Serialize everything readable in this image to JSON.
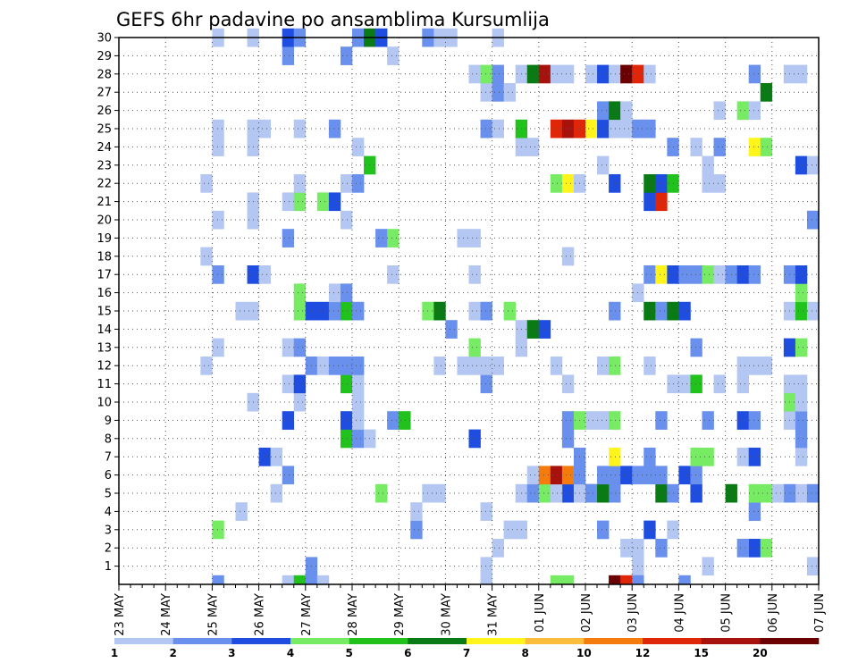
{
  "chart_data": {
    "type": "heatmap",
    "title": "GEFS 6hr padavine po ansamblima Kursumlija",
    "xlabel": "",
    "ylabel": "",
    "x_tick_labels": [
      "23 MAY",
      "24 MAY",
      "25 MAY",
      "26 MAY",
      "27 MAY",
      "28 MAY",
      "29 MAY",
      "30 MAY",
      "31 MAY",
      "01 JUN",
      "02 JUN",
      "03 JUN",
      "04 JUN",
      "05 JUN",
      "06 JUN",
      "07 JUN"
    ],
    "xlim": [
      0,
      60
    ],
    "ylim": [
      0,
      30
    ],
    "y_ticks": [
      1,
      2,
      3,
      4,
      5,
      6,
      7,
      8,
      9,
      10,
      11,
      12,
      13,
      14,
      15,
      16,
      17,
      18,
      19,
      20,
      21,
      22,
      23,
      24,
      25,
      26,
      27,
      28,
      29,
      30
    ],
    "grid": true,
    "colorbar": {
      "labels": [
        "1",
        "2",
        "3",
        "4",
        "5",
        "6",
        "7",
        "8",
        "10",
        "12",
        "15",
        "20"
      ],
      "colors": [
        "#b4c6f2",
        "#6990ec",
        "#1f4de0",
        "#78eb64",
        "#21c21b",
        "#0a7a14",
        "#fff51d",
        "#fcbc3c",
        "#f47c0c",
        "#df2608",
        "#a8120c",
        "#6a0000"
      ]
    },
    "cells": [
      [
        0,
        16,
        2
      ],
      [
        0,
        31,
        1
      ],
      [
        0,
        44,
        1
      ],
      [
        0,
        50,
        1
      ],
      [
        0,
        59,
        1
      ],
      [
        1,
        46,
        2
      ],
      [
        1,
        32,
        1
      ],
      [
        1,
        43,
        1
      ],
      [
        1,
        44,
        1
      ],
      [
        1,
        54,
        3
      ],
      [
        1,
        53,
        2
      ],
      [
        1,
        55,
        4
      ],
      [
        2,
        8,
        4
      ],
      [
        2,
        25,
        2
      ],
      [
        2,
        41,
        2
      ],
      [
        2,
        34,
        1
      ],
      [
        2,
        45,
        3
      ],
      [
        2,
        33,
        1
      ],
      [
        2,
        47,
        1
      ],
      [
        3,
        31,
        1
      ],
      [
        3,
        54,
        2
      ],
      [
        3,
        25,
        1
      ],
      [
        3,
        10,
        1
      ],
      [
        4,
        13,
        1
      ],
      [
        4,
        26,
        1
      ],
      [
        4,
        27,
        1
      ],
      [
        4,
        34,
        1
      ],
      [
        4,
        35,
        2
      ],
      [
        4,
        38,
        3
      ],
      [
        4,
        40,
        3
      ],
      [
        4,
        42,
        2
      ],
      [
        4,
        46,
        6
      ],
      [
        4,
        36,
        4
      ],
      [
        4,
        37,
        1
      ],
      [
        4,
        58,
        1
      ],
      [
        4,
        52,
        6
      ],
      [
        4,
        57,
        2
      ],
      [
        4,
        56,
        1
      ],
      [
        4,
        39,
        1
      ],
      [
        4,
        40,
        2
      ],
      [
        4,
        41,
        6
      ],
      [
        4,
        47,
        2
      ],
      [
        4,
        49,
        3
      ],
      [
        4,
        55,
        4
      ],
      [
        4,
        54,
        4
      ],
      [
        4,
        59,
        2
      ],
      [
        4,
        22,
        4
      ],
      [
        5,
        14,
        2
      ],
      [
        5,
        35,
        1
      ],
      [
        5,
        36,
        9
      ],
      [
        5,
        37,
        11
      ],
      [
        5,
        38,
        9
      ],
      [
        5,
        39,
        2
      ],
      [
        5,
        41,
        2
      ],
      [
        5,
        42,
        2
      ],
      [
        5,
        43,
        3
      ],
      [
        5,
        44,
        2
      ],
      [
        5,
        45,
        2
      ],
      [
        5,
        46,
        2
      ],
      [
        5,
        48,
        3
      ],
      [
        5,
        49,
        2
      ],
      [
        6,
        12,
        3
      ],
      [
        6,
        13,
        1
      ],
      [
        6,
        39,
        2
      ],
      [
        6,
        42,
        7
      ],
      [
        6,
        45,
        2
      ],
      [
        6,
        49,
        4
      ],
      [
        6,
        50,
        4
      ],
      [
        6,
        53,
        1
      ],
      [
        6,
        54,
        3
      ],
      [
        6,
        58,
        1
      ],
      [
        7,
        19,
        5
      ],
      [
        7,
        20,
        2
      ],
      [
        7,
        21,
        1
      ],
      [
        7,
        30,
        3
      ],
      [
        7,
        38,
        2
      ],
      [
        7,
        58,
        2
      ],
      [
        8,
        14,
        3
      ],
      [
        8,
        19,
        3
      ],
      [
        8,
        20,
        1
      ],
      [
        8,
        23,
        2
      ],
      [
        8,
        24,
        5
      ],
      [
        8,
        38,
        2
      ],
      [
        8,
        39,
        4
      ],
      [
        8,
        40,
        1
      ],
      [
        8,
        41,
        1
      ],
      [
        8,
        42,
        4
      ],
      [
        8,
        46,
        2
      ],
      [
        8,
        50,
        2
      ],
      [
        8,
        53,
        3
      ],
      [
        8,
        54,
        2
      ],
      [
        8,
        57,
        1
      ],
      [
        8,
        58,
        2
      ],
      [
        9,
        11,
        1
      ],
      [
        9,
        15,
        1
      ],
      [
        9,
        20,
        1
      ],
      [
        9,
        57,
        4
      ],
      [
        9,
        58,
        1
      ],
      [
        10,
        14,
        1
      ],
      [
        10,
        15,
        3
      ],
      [
        10,
        19,
        5
      ],
      [
        10,
        20,
        1
      ],
      [
        10,
        31,
        2
      ],
      [
        10,
        38,
        1
      ],
      [
        10,
        47,
        1
      ],
      [
        10,
        48,
        1
      ],
      [
        10,
        49,
        5
      ],
      [
        10,
        51,
        1
      ],
      [
        10,
        53,
        1
      ],
      [
        10,
        57,
        1
      ],
      [
        10,
        58,
        1
      ],
      [
        11,
        7,
        1
      ],
      [
        11,
        16,
        2
      ],
      [
        11,
        17,
        1
      ],
      [
        11,
        18,
        2
      ],
      [
        11,
        19,
        2
      ],
      [
        11,
        20,
        2
      ],
      [
        11,
        27,
        1
      ],
      [
        11,
        29,
        1
      ],
      [
        11,
        30,
        1
      ],
      [
        11,
        31,
        1
      ],
      [
        11,
        32,
        1
      ],
      [
        11,
        37,
        1
      ],
      [
        11,
        41,
        1
      ],
      [
        11,
        42,
        4
      ],
      [
        11,
        45,
        1
      ],
      [
        11,
        53,
        1
      ],
      [
        11,
        54,
        1
      ],
      [
        11,
        55,
        1
      ],
      [
        12,
        8,
        1
      ],
      [
        12,
        14,
        1
      ],
      [
        12,
        15,
        2
      ],
      [
        12,
        30,
        4
      ],
      [
        12,
        34,
        1
      ],
      [
        12,
        49,
        2
      ],
      [
        12,
        57,
        3
      ],
      [
        12,
        58,
        4
      ],
      [
        13,
        28,
        2
      ],
      [
        13,
        34,
        1
      ],
      [
        13,
        35,
        6
      ],
      [
        13,
        36,
        3
      ],
      [
        14,
        10,
        1
      ],
      [
        14,
        11,
        1
      ],
      [
        14,
        15,
        4
      ],
      [
        14,
        16,
        3
      ],
      [
        14,
        17,
        3
      ],
      [
        14,
        18,
        2
      ],
      [
        14,
        19,
        5
      ],
      [
        14,
        20,
        2
      ],
      [
        14,
        26,
        4
      ],
      [
        14,
        27,
        6
      ],
      [
        14,
        30,
        1
      ],
      [
        14,
        31,
        2
      ],
      [
        14,
        33,
        4
      ],
      [
        14,
        42,
        2
      ],
      [
        14,
        45,
        6
      ],
      [
        14,
        46,
        2
      ],
      [
        14,
        47,
        6
      ],
      [
        14,
        48,
        3
      ],
      [
        14,
        57,
        1
      ],
      [
        14,
        58,
        5
      ],
      [
        14,
        59,
        1
      ],
      [
        15,
        15,
        4
      ],
      [
        15,
        18,
        1
      ],
      [
        15,
        19,
        2
      ],
      [
        15,
        44,
        1
      ],
      [
        15,
        58,
        4
      ],
      [
        16,
        8,
        2
      ],
      [
        16,
        11,
        3
      ],
      [
        16,
        12,
        1
      ],
      [
        16,
        23,
        1
      ],
      [
        16,
        30,
        1
      ],
      [
        16,
        45,
        2
      ],
      [
        16,
        46,
        7
      ],
      [
        16,
        47,
        3
      ],
      [
        16,
        48,
        2
      ],
      [
        16,
        49,
        2
      ],
      [
        16,
        50,
        4
      ],
      [
        16,
        51,
        1
      ],
      [
        16,
        52,
        2
      ],
      [
        16,
        53,
        3
      ],
      [
        16,
        54,
        2
      ],
      [
        16,
        57,
        2
      ],
      [
        16,
        58,
        3
      ],
      [
        17,
        7,
        1
      ],
      [
        17,
        38,
        1
      ],
      [
        18,
        14,
        2
      ],
      [
        18,
        22,
        2
      ],
      [
        18,
        23,
        4
      ],
      [
        18,
        29,
        1
      ],
      [
        18,
        30,
        1
      ],
      [
        19,
        8,
        1
      ],
      [
        19,
        11,
        1
      ],
      [
        19,
        19,
        1
      ],
      [
        19,
        59,
        2
      ],
      [
        20,
        11,
        1
      ],
      [
        20,
        14,
        1
      ],
      [
        20,
        15,
        4
      ],
      [
        20,
        17,
        4
      ],
      [
        20,
        18,
        3
      ],
      [
        20,
        45,
        3
      ],
      [
        20,
        46,
        10
      ],
      [
        21,
        7,
        1
      ],
      [
        21,
        15,
        1
      ],
      [
        21,
        19,
        1
      ],
      [
        21,
        20,
        2
      ],
      [
        21,
        37,
        4
      ],
      [
        21,
        38,
        7
      ],
      [
        21,
        39,
        1
      ],
      [
        21,
        42,
        3
      ],
      [
        21,
        45,
        6
      ],
      [
        21,
        46,
        3
      ],
      [
        21,
        47,
        5
      ],
      [
        21,
        50,
        1
      ],
      [
        21,
        51,
        1
      ],
      [
        22,
        21,
        5
      ],
      [
        22,
        41,
        1
      ],
      [
        22,
        58,
        3
      ],
      [
        22,
        59,
        1
      ],
      [
        22,
        50,
        1
      ],
      [
        23,
        8,
        1
      ],
      [
        23,
        11,
        1
      ],
      [
        23,
        20,
        1
      ],
      [
        23,
        34,
        1
      ],
      [
        23,
        35,
        1
      ],
      [
        23,
        47,
        2
      ],
      [
        23,
        49,
        1
      ],
      [
        23,
        51,
        2
      ],
      [
        23,
        54,
        7
      ],
      [
        23,
        55,
        4
      ],
      [
        24,
        8,
        1
      ],
      [
        24,
        11,
        1
      ],
      [
        24,
        12,
        1
      ],
      [
        24,
        15,
        1
      ],
      [
        24,
        18,
        2
      ],
      [
        24,
        31,
        2
      ],
      [
        24,
        32,
        1
      ],
      [
        24,
        34,
        5
      ],
      [
        24,
        37,
        10
      ],
      [
        24,
        38,
        11
      ],
      [
        24,
        39,
        10
      ],
      [
        24,
        40,
        7
      ],
      [
        24,
        41,
        3
      ],
      [
        24,
        42,
        1
      ],
      [
        24,
        43,
        1
      ],
      [
        24,
        44,
        2
      ],
      [
        24,
        45,
        2
      ],
      [
        25,
        41,
        2
      ],
      [
        25,
        42,
        6
      ],
      [
        25,
        43,
        1
      ],
      [
        25,
        51,
        1
      ],
      [
        25,
        53,
        4
      ],
      [
        25,
        54,
        1
      ],
      [
        26,
        31,
        1
      ],
      [
        26,
        32,
        2
      ],
      [
        26,
        33,
        1
      ],
      [
        26,
        55,
        6
      ],
      [
        27,
        30,
        1
      ],
      [
        27,
        31,
        4
      ],
      [
        27,
        32,
        2
      ],
      [
        27,
        34,
        1
      ],
      [
        27,
        35,
        6
      ],
      [
        27,
        36,
        11
      ],
      [
        27,
        37,
        1
      ],
      [
        27,
        38,
        1
      ],
      [
        27,
        40,
        1
      ],
      [
        27,
        41,
        3
      ],
      [
        27,
        42,
        1
      ],
      [
        27,
        43,
        12
      ],
      [
        27,
        44,
        10
      ],
      [
        27,
        45,
        1
      ],
      [
        27,
        54,
        2
      ],
      [
        27,
        57,
        1
      ],
      [
        27,
        58,
        1
      ],
      [
        28,
        14,
        2
      ],
      [
        28,
        19,
        2
      ],
      [
        28,
        23,
        1
      ],
      [
        29,
        8,
        1
      ],
      [
        29,
        11,
        1
      ],
      [
        29,
        14,
        3
      ],
      [
        29,
        15,
        2
      ],
      [
        29,
        20,
        2
      ],
      [
        29,
        21,
        6
      ],
      [
        29,
        22,
        3
      ],
      [
        29,
        26,
        2
      ],
      [
        29,
        27,
        1
      ],
      [
        29,
        28,
        1
      ],
      [
        29,
        32,
        1
      ],
      [
        -1,
        8,
        2
      ],
      [
        -1,
        14,
        1
      ],
      [
        -1,
        15,
        5
      ],
      [
        -1,
        16,
        2
      ],
      [
        -1,
        17,
        1
      ],
      [
        -1,
        31,
        1
      ],
      [
        -1,
        37,
        4
      ],
      [
        -1,
        38,
        4
      ],
      [
        -1,
        42,
        12
      ],
      [
        -1,
        43,
        10
      ],
      [
        -1,
        44,
        2
      ],
      [
        -1,
        48,
        2
      ]
    ]
  }
}
